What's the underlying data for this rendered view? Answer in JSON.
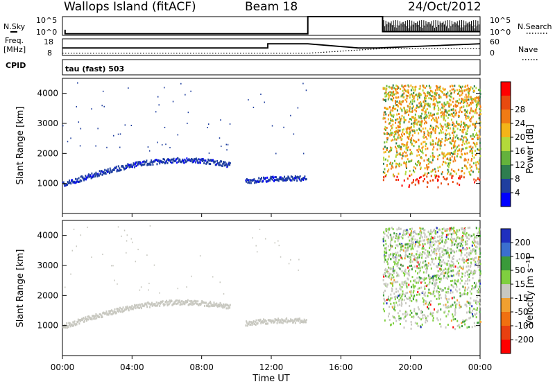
{
  "header": {
    "station": "Wallops Island (fitACF)",
    "beam": "Beam 18",
    "date": "24/Oct/2012"
  },
  "top_panels": {
    "nsky_label": "N.Sky",
    "nsearch_label": "N.Search",
    "noise_ticks_left": [
      "10^5",
      "10^0"
    ],
    "noise_ticks_right": [
      "10^5",
      "10^0"
    ],
    "freq_label_line1": "Freq.",
    "freq_label_line2": "[MHz]",
    "freq_ticks": [
      "18",
      "8"
    ],
    "nave_label": "Nave",
    "nave_ticks": [
      "60",
      "0"
    ],
    "cpid_label": "CPID",
    "cpid_value": "tau (fast) 503"
  },
  "colors": {
    "power_scale": [
      "#0000ff",
      "#1f3f9f",
      "#2e7d4f",
      "#64b23c",
      "#b3d93a",
      "#f3b418",
      "#f07b14",
      "#e84a10",
      "#ff0000"
    ],
    "velocity_scale": [
      "#1f2fbf",
      "#3b6fcf",
      "#3a9a3a",
      "#7fcf3f",
      "#c8c8c0",
      "#f0a030",
      "#f07010",
      "#e84010",
      "#ff0000"
    ],
    "ground_scatter": "#c8c8c0"
  },
  "chart_data": [
    {
      "type": "line",
      "panel": "noise",
      "series": [
        {
          "name": "N.Sky",
          "x_hours": [
            0.15,
            0.15,
            14.1,
            14.1,
            18.4,
            18.4,
            24.0
          ],
          "y_rel": [
            0.3,
            0.08,
            0.08,
            1.0,
            1.0,
            0.2,
            0.2
          ]
        },
        {
          "name": "N.Search",
          "x_hours": [
            18.4,
            24.0
          ],
          "y_rel": [
            0.5,
            0.5
          ]
        }
      ],
      "ylim_text": [
        "10^0",
        "10^5"
      ]
    },
    {
      "type": "line",
      "panel": "frequency_nave",
      "series": [
        {
          "name": "Freq.",
          "x_hours": [
            0.0,
            11.8,
            11.8,
            14.1,
            17.0,
            17.8,
            18.1,
            24.0
          ],
          "y_mhz": [
            12.5,
            12.5,
            15.0,
            15.0,
            12.5,
            12.5,
            12.5,
            15.0
          ]
        },
        {
          "name": "Nave",
          "x_hours": [
            0.0,
            14.1,
            18.4,
            24.0
          ],
          "y_value": [
            8,
            8,
            25,
            25
          ]
        }
      ],
      "freq_ylim": [
        8,
        18
      ],
      "nave_ylim": [
        0,
        60
      ]
    },
    {
      "type": "scatter",
      "panel": "power",
      "title": "",
      "xlabel": "",
      "ylabel": "Slant Range [km]",
      "xlim_hours": [
        0,
        24
      ],
      "ylim_km": [
        0,
        4500
      ],
      "x_ticks": [
        "00:00",
        "04:00",
        "08:00",
        "12:00",
        "16:00",
        "20:00",
        "00:00"
      ],
      "y_ticks": [
        "1000",
        "2000",
        "3000",
        "4000"
      ],
      "colorbar_label": "Power [dB]",
      "colorbar_ticks": [
        "4",
        "8",
        "12",
        "16",
        "20",
        "24",
        "28"
      ],
      "colorbar_range": [
        0,
        32
      ],
      "scatter_regions": [
        {
          "x_start": 0.0,
          "x_end": 9.6,
          "range_start_km": 1000,
          "range_peak_km": 1800,
          "color_index": 0
        },
        {
          "x_start": 10.5,
          "x_end": 14.0,
          "range_start_km": 1100,
          "range_peak_km": 1200,
          "color_index": 0
        },
        {
          "x_start": 18.4,
          "x_end": 24.0,
          "range_start_km": 900,
          "range_peak_km": 4300,
          "color_index": 6
        }
      ]
    },
    {
      "type": "scatter",
      "panel": "velocity",
      "title": "",
      "xlabel": "Time UT",
      "ylabel": "Slant Range [km]",
      "xlim_hours": [
        0,
        24
      ],
      "ylim_km": [
        0,
        4500
      ],
      "x_ticks": [
        "00:00",
        "04:00",
        "08:00",
        "12:00",
        "16:00",
        "20:00",
        "00:00"
      ],
      "y_ticks": [
        "1000",
        "2000",
        "3000",
        "4000"
      ],
      "colorbar_label": "Velocity [m s⁻¹]",
      "colorbar_ticks": [
        "200",
        "100",
        "50",
        "15",
        "-15",
        "-50",
        "-100",
        "-200"
      ],
      "scatter_regions": [
        {
          "x_start": 0.0,
          "x_end": 9.6,
          "range_start_km": 1000,
          "range_peak_km": 1800,
          "color_index": 4
        },
        {
          "x_start": 10.5,
          "x_end": 14.0,
          "range_start_km": 1100,
          "range_peak_km": 1200,
          "color_index": 4
        },
        {
          "x_start": 18.4,
          "x_end": 24.0,
          "range_start_km": 900,
          "range_peak_km": 4300,
          "color_index": 4
        }
      ]
    }
  ]
}
